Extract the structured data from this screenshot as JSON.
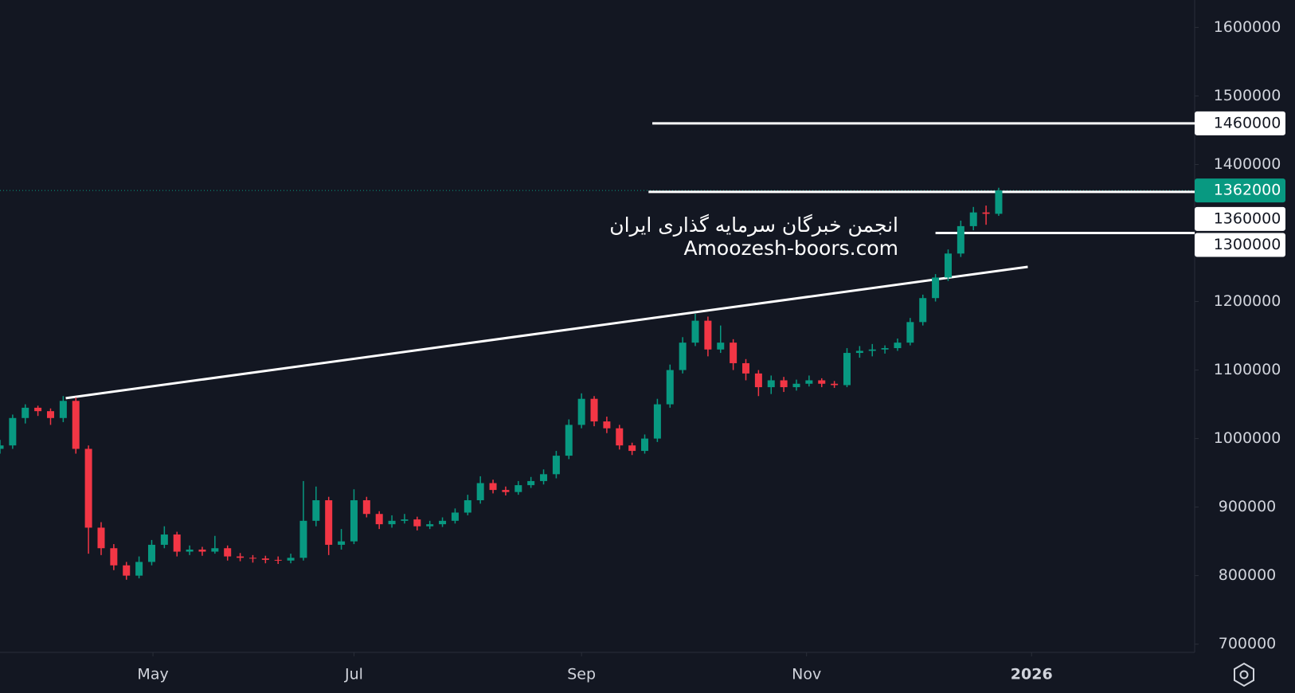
{
  "chart_data": {
    "type": "candlestick",
    "categories": [
      null,
      null,
      null,
      null,
      null,
      null,
      null,
      null,
      null,
      null,
      null,
      null,
      null,
      null,
      null,
      null,
      null,
      null,
      null,
      null,
      null,
      null,
      null,
      null,
      null,
      null,
      null,
      null,
      null,
      null,
      null,
      null,
      null,
      null,
      null,
      null,
      null,
      null,
      null,
      null,
      null,
      null,
      null,
      null,
      null,
      null,
      null,
      null,
      null,
      null,
      null,
      null,
      null,
      null,
      null,
      null,
      null,
      null,
      null,
      null,
      null,
      null,
      null,
      null,
      null,
      null,
      null,
      null,
      null,
      null,
      null,
      null,
      null,
      null,
      null,
      null,
      null,
      null,
      null,
      null
    ],
    "open": [
      985000,
      990000,
      1030000,
      1045000,
      1040000,
      1030000,
      1055000,
      985000,
      870000,
      840000,
      815000,
      800000,
      820000,
      845000,
      860000,
      835000,
      838000,
      835000,
      840000,
      828000,
      826000,
      825000,
      823000,
      822000,
      826000,
      880000,
      910000,
      845000,
      850000,
      910000,
      890000,
      875000,
      880000,
      882000,
      872000,
      875000,
      880000,
      892000,
      910000,
      935000,
      925000,
      922000,
      932000,
      938000,
      948000,
      975000,
      1020000,
      1058000,
      1025000,
      1015000,
      990000,
      982000,
      1000000,
      1050000,
      1100000,
      1140000,
      1172000,
      1130000,
      1140000,
      1110000,
      1095000,
      1075000,
      1085000,
      1075000,
      1080000,
      1085000,
      1080000,
      1078000,
      1125000,
      1128000,
      1130000,
      1132000,
      1140000,
      1170000,
      1205000,
      1235000,
      1270000,
      1310000,
      1330000,
      1328000
    ],
    "high": [
      998000,
      1035000,
      1050000,
      1048000,
      1044000,
      1062000,
      1060000,
      990000,
      878000,
      846000,
      820000,
      828000,
      852000,
      872000,
      864000,
      844000,
      842000,
      858000,
      844000,
      833000,
      830000,
      829000,
      828000,
      832000,
      938000,
      930000,
      915000,
      868000,
      926000,
      915000,
      894000,
      888000,
      890000,
      886000,
      880000,
      885000,
      898000,
      918000,
      945000,
      940000,
      930000,
      938000,
      944000,
      955000,
      982000,
      1028000,
      1066000,
      1062000,
      1032000,
      1020000,
      994000,
      1006000,
      1058000,
      1108000,
      1148000,
      1182000,
      1178000,
      1165000,
      1145000,
      1116000,
      1100000,
      1092000,
      1090000,
      1086000,
      1092000,
      1088000,
      1084000,
      1132000,
      1135000,
      1138000,
      1136000,
      1146000,
      1176000,
      1210000,
      1240000,
      1276000,
      1318000,
      1338000,
      1340000,
      1366000
    ],
    "low": [
      978000,
      985000,
      1022000,
      1033000,
      1020000,
      1024000,
      978000,
      832000,
      830000,
      808000,
      794000,
      796000,
      815000,
      840000,
      828000,
      830000,
      829000,
      832000,
      822000,
      821000,
      819000,
      818000,
      817000,
      818000,
      822000,
      872000,
      830000,
      838000,
      846000,
      885000,
      868000,
      870000,
      876000,
      866000,
      868000,
      871000,
      876000,
      888000,
      905000,
      920000,
      917000,
      918000,
      928000,
      933000,
      942000,
      970000,
      1015000,
      1018000,
      1008000,
      984000,
      976000,
      978000,
      995000,
      1045000,
      1095000,
      1135000,
      1120000,
      1125000,
      1100000,
      1085000,
      1062000,
      1065000,
      1068000,
      1070000,
      1076000,
      1075000,
      1074000,
      1075000,
      1118000,
      1120000,
      1124000,
      1128000,
      1136000,
      1165000,
      1200000,
      1230000,
      1265000,
      1304000,
      1312000,
      1325000
    ],
    "close": [
      990000,
      1030000,
      1045000,
      1040000,
      1030000,
      1055000,
      985000,
      870000,
      840000,
      815000,
      800000,
      820000,
      845000,
      860000,
      835000,
      838000,
      835000,
      840000,
      828000,
      826000,
      825000,
      823000,
      822000,
      826000,
      880000,
      910000,
      845000,
      850000,
      910000,
      890000,
      875000,
      880000,
      882000,
      872000,
      875000,
      880000,
      892000,
      910000,
      935000,
      925000,
      922000,
      932000,
      938000,
      948000,
      975000,
      1020000,
      1058000,
      1025000,
      1015000,
      990000,
      982000,
      1000000,
      1050000,
      1100000,
      1140000,
      1172000,
      1130000,
      1140000,
      1110000,
      1095000,
      1075000,
      1085000,
      1075000,
      1080000,
      1085000,
      1080000,
      1078000,
      1125000,
      1128000,
      1130000,
      1132000,
      1140000,
      1170000,
      1205000,
      1235000,
      1270000,
      1310000,
      1330000,
      1328000,
      1362000
    ],
    "up_color": "#089981",
    "down_color": "#f23645",
    "xlim": [
      0,
      94.5
    ],
    "xticks": [
      {
        "value": 12.1,
        "label": "May"
      },
      {
        "value": 28,
        "label": "Jul"
      },
      {
        "value": 46,
        "label": "Sep"
      },
      {
        "value": 63.8,
        "label": "Nov"
      },
      {
        "value": 81.6,
        "label": "2026"
      }
    ],
    "ylim": [
      688000,
      1640000
    ],
    "yticks": [
      700000,
      800000,
      900000,
      1000000,
      1100000,
      1200000,
      1400000,
      1500000,
      1600000
    ],
    "levels": [
      1460000,
      1360000,
      1300000
    ],
    "last_price": 1362000,
    "trendline": [
      1059000,
      1250600
    ],
    "watermark": [
      "انجمن خبرگان سرمایه گذاری ایران",
      "Amoozesh-boors.com"
    ]
  }
}
